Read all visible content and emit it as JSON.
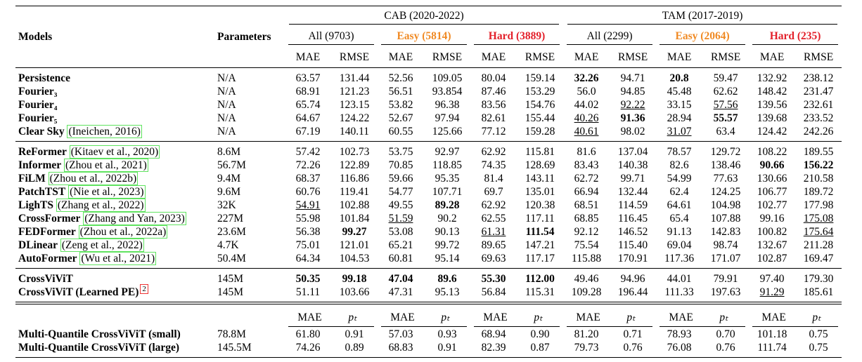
{
  "header": {
    "models": "Models",
    "parameters": "Parameters",
    "groups": [
      {
        "name": "CAB (2020-2022)",
        "subsets": [
          {
            "name": "All (9703)",
            "color": "#000000"
          },
          {
            "name": "Easy (5814)",
            "color": "#f08a24"
          },
          {
            "name": "Hard (3889)",
            "color": "#e3202a"
          }
        ]
      },
      {
        "name": "TAM (2017-2019)",
        "subsets": [
          {
            "name": "All (2299)",
            "color": "#000000"
          },
          {
            "name": "Easy (2064)",
            "color": "#f08a24"
          },
          {
            "name": "Hard (235)",
            "color": "#e3202a"
          }
        ]
      }
    ],
    "metrics": [
      "MAE",
      "RMSE"
    ]
  },
  "sections": [
    {
      "rows": [
        {
          "model": "Persistence",
          "params": "N/A",
          "values": [
            "63.57",
            "131.44",
            "52.56",
            "109.05",
            "80.04",
            "159.14",
            "32.26",
            "94.71",
            "20.8",
            "59.47",
            "132.92",
            "238.12"
          ]
        },
        {
          "model": "Fourier₃",
          "params": "N/A",
          "values": [
            "68.91",
            "121.23",
            "56.51",
            "93.854",
            "87.46",
            "153.29",
            "56.0",
            "94.85",
            "45.48",
            "62.62",
            "148.42",
            "231.47"
          ]
        },
        {
          "model": "Fourier₄",
          "params": "N/A",
          "values": [
            "65.74",
            "123.15",
            "53.82",
            "96.38",
            "83.56",
            "154.76",
            "44.02",
            "92.22",
            "33.15",
            "57.56",
            "139.56",
            "232.61"
          ]
        },
        {
          "model": "Fourier₅",
          "params": "N/A",
          "values": [
            "64.67",
            "124.22",
            "52.67",
            "97.94",
            "82.61",
            "155.44",
            "40.26",
            "91.36",
            "28.94",
            "55.57",
            "139.68",
            "233.52"
          ]
        },
        {
          "model": "Clear Sky",
          "cite": "(Ineichen, 2016)",
          "params": "N/A",
          "values": [
            "67.19",
            "140.11",
            "60.55",
            "125.66",
            "77.12",
            "159.28",
            "40.61",
            "98.02",
            "31.07",
            "63.4",
            "124.42",
            "242.26"
          ]
        }
      ]
    },
    {
      "rows": [
        {
          "model": "ReFormer",
          "cite": "(Kitaev et al., 2020)",
          "params": "8.6M",
          "values": [
            "57.42",
            "102.73",
            "53.75",
            "92.97",
            "62.92",
            "115.81",
            "81.6",
            "137.04",
            "78.57",
            "129.72",
            "108.22",
            "189.55"
          ]
        },
        {
          "model": "Informer",
          "cite": "(Zhou et al., 2021)",
          "params": "56.7M",
          "values": [
            "72.26",
            "122.89",
            "70.85",
            "118.85",
            "74.35",
            "128.69",
            "83.43",
            "140.38",
            "82.6",
            "138.46",
            "90.66",
            "156.22"
          ]
        },
        {
          "model": "FiLM",
          "cite": "(Zhou et al., 2022b)",
          "params": "9.4M",
          "values": [
            "68.37",
            "116.86",
            "59.66",
            "95.35",
            "81.4",
            "143.11",
            "62.72",
            "99.71",
            "54.99",
            "77.63",
            "130.66",
            "210.58"
          ]
        },
        {
          "model": "PatchTST",
          "cite": "(Nie et al., 2023)",
          "params": "9.6M",
          "values": [
            "60.76",
            "119.41",
            "54.77",
            "107.71",
            "69.7",
            "135.01",
            "66.94",
            "132.44",
            "62.4",
            "124.25",
            "106.77",
            "189.72"
          ]
        },
        {
          "model": "LighTS",
          "cite": "(Zhang et al., 2022)",
          "params": "32K",
          "values": [
            "54.91",
            "102.88",
            "49.55",
            "89.28",
            "62.92",
            "120.38",
            "68.51",
            "114.59",
            "64.61",
            "104.98",
            "102.77",
            "177.98"
          ]
        },
        {
          "model": "CrossFormer",
          "cite": "(Zhang and Yan, 2023)",
          "params": "227M",
          "values": [
            "55.98",
            "101.84",
            "51.59",
            "90.2",
            "62.55",
            "117.11",
            "68.85",
            "116.45",
            "65.4",
            "107.88",
            "99.16",
            "175.08"
          ]
        },
        {
          "model": "FEDFormer",
          "cite": "(Zhou et al., 2022a)",
          "params": "23.6M",
          "values": [
            "56.38",
            "99.27",
            "53.08",
            "90.13",
            "61.31",
            "111.54",
            "92.12",
            "146.52",
            "91.13",
            "142.83",
            "100.82",
            "175.64"
          ]
        },
        {
          "model": "DLinear",
          "cite": "(Zeng et al., 2022)",
          "params": "4.7K",
          "values": [
            "75.01",
            "121.01",
            "65.21",
            "99.72",
            "89.65",
            "147.21",
            "75.54",
            "115.40",
            "69.04",
            "98.74",
            "132.67",
            "211.28"
          ]
        },
        {
          "model": "AutoFormer",
          "cite": "(Wu et al., 2021)",
          "params": "50.4M",
          "values": [
            "64.34",
            "104.53",
            "60.81",
            "95.14",
            "69.63",
            "117.17",
            "115.88",
            "170.91",
            "117.36",
            "171.07",
            "102.87",
            "169.47"
          ]
        }
      ]
    },
    {
      "rows": [
        {
          "model": "CrossViViT",
          "params": "145M",
          "values": [
            "50.35",
            "99.18",
            "47.04",
            "89.6",
            "55.30",
            "112.00",
            "49.46",
            "94.96",
            "44.01",
            "79.91",
            "97.40",
            "179.30"
          ]
        },
        {
          "model": "CrossViViT (Learned PE)",
          "footnote": "2",
          "params": "145M",
          "values": [
            "51.11",
            "103.66",
            "47.31",
            "95.13",
            "56.84",
            "115.31",
            "109.28",
            "196.44",
            "111.33",
            "197.63",
            "91.29",
            "185.61"
          ]
        }
      ]
    },
    {
      "metrics": [
        "MAE",
        "pₜ"
      ],
      "rows": [
        {
          "model": "Multi-Quantile CrossViViT (small)",
          "params": "78.8M",
          "values": [
            "61.80",
            "0.91",
            "57.03",
            "0.93",
            "68.94",
            "0.90",
            "81.20",
            "0.71",
            "78.93",
            "0.70",
            "101.18",
            "0.75"
          ]
        },
        {
          "model": "Multi-Quantile CrossViViT (large)",
          "params": "145.5M",
          "values": [
            "74.26",
            "0.89",
            "68.83",
            "0.91",
            "82.39",
            "0.87",
            "79.73",
            "0.76",
            "76.08",
            "0.76",
            "111.74",
            "0.75"
          ]
        }
      ]
    }
  ]
}
